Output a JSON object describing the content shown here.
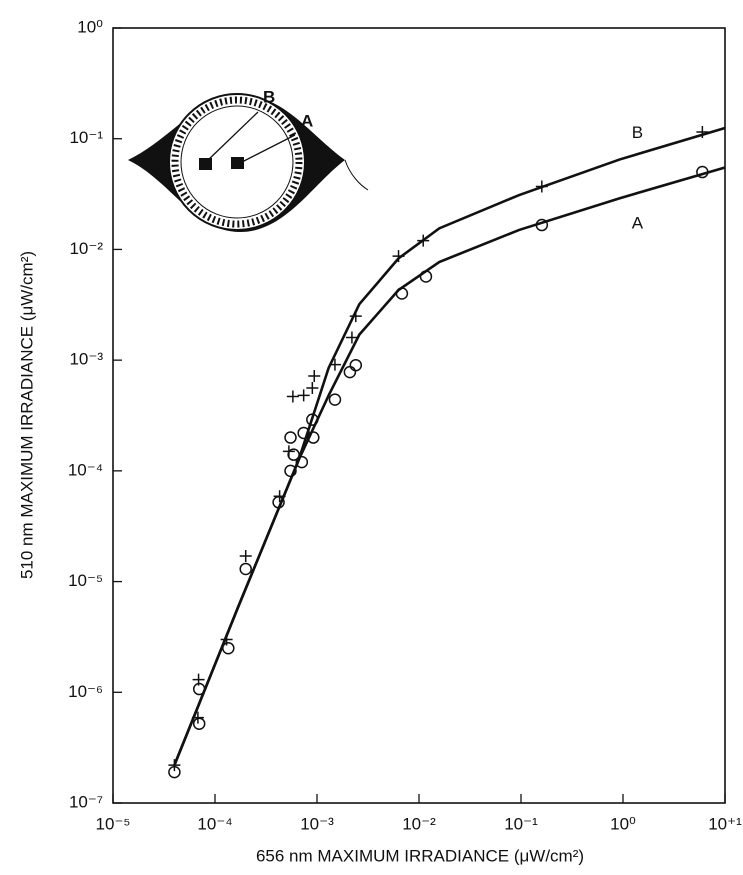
{
  "chart_data": {
    "type": "scatter",
    "xlabel": "656 nm MAXIMUM IRRADIANCE (μW/cm²)",
    "ylabel": "510 nm MAXIMUM IRRADIANCE (μW/cm²)",
    "xscale": "log",
    "yscale": "log",
    "xlim": [
      1e-05,
      10
    ],
    "ylim": [
      1e-07,
      1
    ],
    "xticks": [
      {
        "value": 1e-05,
        "label": "10⁻⁵"
      },
      {
        "value": 0.0001,
        "label": "10⁻⁴"
      },
      {
        "value": 0.001,
        "label": "10⁻³"
      },
      {
        "value": 0.01,
        "label": "10⁻²"
      },
      {
        "value": 0.1,
        "label": "10⁻¹"
      },
      {
        "value": 1,
        "label": "10⁰"
      },
      {
        "value": 10,
        "label": "10⁺¹"
      }
    ],
    "yticks": [
      {
        "value": 1e-07,
        "label": "10⁻⁷"
      },
      {
        "value": 1e-06,
        "label": "10⁻⁶"
      },
      {
        "value": 1e-05,
        "label": "10⁻⁵"
      },
      {
        "value": 0.0001,
        "label": "10⁻⁴"
      },
      {
        "value": 0.001,
        "label": "10⁻³"
      },
      {
        "value": 0.01,
        "label": "10⁻²"
      },
      {
        "value": 0.1,
        "label": "10⁻¹"
      },
      {
        "value": 1,
        "label": "10⁰"
      }
    ],
    "inset_labels": [
      "B",
      "A"
    ],
    "series": [
      {
        "name": "A",
        "marker": "circle",
        "color": "#111111",
        "x": [
          4e-05,
          7e-05,
          7e-05,
          0.000135,
          0.0002,
          0.00042,
          0.00055,
          0.00055,
          0.00059,
          0.00071,
          0.00074,
          0.0009,
          0.00092,
          0.0015,
          0.0021,
          0.0024,
          0.0068,
          0.0117,
          0.16,
          6.0
        ],
        "values": [
          1.9e-07,
          5.2e-07,
          1.07e-06,
          2.5e-06,
          1.3e-05,
          5.2e-05,
          0.0001,
          0.0002,
          0.00014,
          0.00012,
          0.00022,
          0.00029,
          0.0002,
          0.00044,
          0.00078,
          0.0009,
          0.004,
          0.0057,
          0.0166,
          0.05
        ],
        "curve_x": [
          4e-05,
          0.00017,
          0.00066,
          0.0013,
          0.0026,
          0.0063,
          0.0158,
          0.096,
          0.93,
          10
        ],
        "curve_y": [
          2.2e-07,
          6e-06,
          0.000125,
          0.00048,
          0.0017,
          0.0043,
          0.0077,
          0.015,
          0.029,
          0.055
        ]
      },
      {
        "name": "B",
        "marker": "plus",
        "color": "#111111",
        "x": [
          4e-05,
          6.8e-05,
          6.9e-05,
          0.00013,
          0.0002,
          0.00043,
          0.00053,
          0.00058,
          0.00074,
          0.0009,
          0.00094,
          0.0015,
          0.0022,
          0.0024,
          0.0063,
          0.011,
          0.16,
          6.0
        ],
        "values": [
          2.2e-07,
          5.9e-07,
          1.3e-06,
          3e-06,
          1.7e-05,
          5.9e-05,
          0.00015,
          0.00047,
          0.00048,
          0.00056,
          0.00072,
          0.00091,
          0.0016,
          0.0025,
          0.0087,
          0.012,
          0.037,
          0.115
        ],
        "curve_x": [
          4e-05,
          0.00017,
          0.00066,
          0.0013,
          0.0026,
          0.0063,
          0.0158,
          0.096,
          0.93,
          10
        ],
        "curve_y": [
          2.2e-07,
          6e-06,
          0.000125,
          0.00085,
          0.0032,
          0.0083,
          0.0155,
          0.031,
          0.065,
          0.125
        ]
      }
    ]
  }
}
